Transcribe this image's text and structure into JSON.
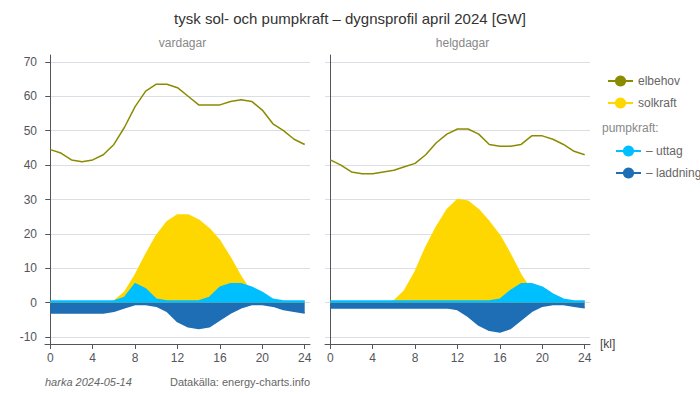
{
  "chart_data": [
    {
      "type": "line",
      "title": "tysk sol- och pumpkraft – dygnsprofil april 2024 [GW]",
      "subtitle": "vardagar",
      "annotations": [
        "harka 2024-05-14",
        "Datakälla: energy-charts.info"
      ],
      "x": [
        0,
        1,
        2,
        3,
        4,
        5,
        6,
        7,
        8,
        9,
        10,
        11,
        12,
        13,
        14,
        15,
        16,
        17,
        18,
        19,
        20,
        21,
        22,
        23,
        24
      ],
      "xlim": [
        -0.5,
        24.5
      ],
      "xticks": [
        0,
        4,
        8,
        12,
        16,
        20,
        24
      ],
      "ylim": [
        -12,
        72
      ],
      "yticks": [
        -10,
        0,
        10,
        20,
        30,
        40,
        50,
        60,
        70
      ],
      "grid": true,
      "series": [
        {
          "name": "elbehov",
          "type": "line",
          "color": "#8b8b00",
          "values": [
            44.5,
            43.5,
            41.5,
            41.0,
            41.5,
            43.0,
            46.0,
            51.0,
            57.0,
            61.5,
            63.5,
            63.5,
            62.5,
            60.0,
            57.5,
            57.5,
            57.5,
            58.5,
            59.0,
            58.5,
            56.0,
            52.0,
            50.0,
            47.5,
            46.0
          ]
        },
        {
          "name": "solkraft",
          "type": "area",
          "color": "#ffd700",
          "values": [
            0,
            0,
            0,
            0,
            0,
            0,
            0.5,
            3.0,
            8.0,
            14.0,
            19.5,
            23.5,
            25.5,
            25.5,
            24.0,
            21.5,
            18.0,
            13.0,
            7.5,
            3.0,
            0.5,
            0,
            0,
            0,
            0
          ]
        },
        {
          "name": "– uttag",
          "type": "area",
          "color": "#00bfff",
          "values": [
            0.5,
            0.5,
            0.5,
            0.5,
            0.5,
            0.5,
            0.5,
            1.5,
            5.5,
            4.0,
            1.0,
            0.5,
            0.5,
            0.5,
            0.5,
            1.5,
            4.5,
            5.5,
            5.5,
            4.5,
            3.0,
            1.0,
            0.5,
            0.5,
            0.5
          ]
        },
        {
          "name": "– laddning",
          "type": "area",
          "color": "#1e6eb5",
          "values": [
            -3.0,
            -3.0,
            -3.0,
            -3.0,
            -3.0,
            -3.0,
            -2.5,
            -1.5,
            -0.5,
            -0.5,
            -1.0,
            -2.5,
            -5.5,
            -7.0,
            -7.5,
            -7.0,
            -5.0,
            -3.0,
            -1.5,
            -0.5,
            -0.5,
            -1.0,
            -2.0,
            -2.5,
            -3.0
          ]
        }
      ]
    },
    {
      "type": "line",
      "subtitle": "helgdagar",
      "xlabel": "[kl]",
      "legend": "right",
      "annotations": [
        "pumpkraft:"
      ],
      "tick_labels": "x",
      "x": [
        0,
        1,
        2,
        3,
        4,
        5,
        6,
        7,
        8,
        9,
        10,
        11,
        12,
        13,
        14,
        15,
        16,
        17,
        18,
        19,
        20,
        21,
        22,
        23,
        24
      ],
      "xlim": [
        -0.5,
        24.5
      ],
      "xticks": [
        0,
        4,
        8,
        12,
        16,
        20,
        24
      ],
      "ylim": [
        -12,
        72
      ],
      "yticks": [
        -10,
        0,
        10,
        20,
        30,
        40,
        50,
        60,
        70
      ],
      "grid": true,
      "series": [
        {
          "name": "elbehov",
          "type": "line",
          "color": "#8b8b00",
          "values": [
            41.5,
            40.0,
            38.0,
            37.5,
            37.5,
            38.0,
            38.5,
            39.5,
            40.5,
            43.0,
            46.5,
            49.0,
            50.5,
            50.5,
            49.0,
            46.0,
            45.5,
            45.5,
            46.0,
            48.5,
            48.5,
            47.5,
            46.0,
            44.0,
            43.0
          ]
        },
        {
          "name": "solkraft",
          "type": "area",
          "color": "#ffd700",
          "values": [
            0,
            0,
            0,
            0,
            0,
            0,
            0.5,
            3.5,
            9.0,
            16.0,
            22.0,
            27.0,
            30.0,
            29.5,
            27.0,
            23.5,
            19.5,
            14.0,
            8.0,
            3.5,
            0.5,
            0,
            0,
            0,
            0
          ]
        },
        {
          "name": "– uttag",
          "type": "area",
          "color": "#00bfff",
          "values": [
            0.5,
            0.5,
            0.5,
            0.5,
            0.5,
            0.5,
            0.5,
            0.5,
            0.5,
            0.5,
            0.5,
            0.5,
            0.5,
            0.5,
            0.5,
            0.5,
            1.0,
            3.5,
            5.5,
            5.5,
            4.5,
            2.5,
            1.0,
            0.5,
            0.5
          ]
        },
        {
          "name": "– laddning",
          "type": "area",
          "color": "#1e6eb5",
          "values": [
            -1.5,
            -1.5,
            -1.5,
            -1.5,
            -1.5,
            -1.5,
            -1.5,
            -1.5,
            -1.5,
            -1.5,
            -1.5,
            -1.5,
            -2.0,
            -4.0,
            -6.5,
            -8.0,
            -8.5,
            -7.5,
            -5.0,
            -2.5,
            -1.0,
            -0.5,
            -0.5,
            -1.0,
            -1.5
          ]
        }
      ]
    }
  ]
}
